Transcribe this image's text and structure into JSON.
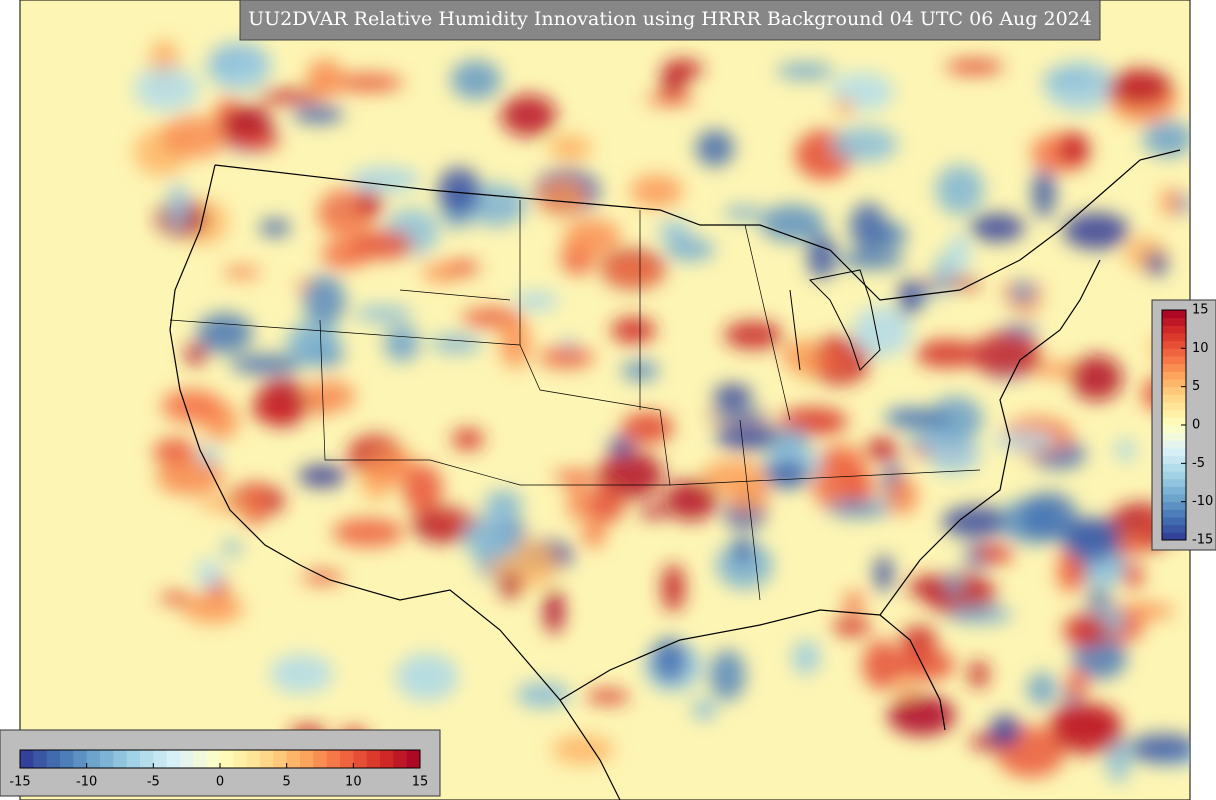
{
  "title": "UU2DVAR Relative Humidity Innovation using HRRR Background 04 UTC 06 Aug 2024",
  "colorbar_right": {
    "ticks": [
      15,
      10,
      5,
      0,
      -5,
      -10,
      -15
    ]
  },
  "colorbar_bottom": {
    "ticks": [
      -15,
      -10,
      -5,
      0,
      5,
      10,
      15
    ]
  }
}
